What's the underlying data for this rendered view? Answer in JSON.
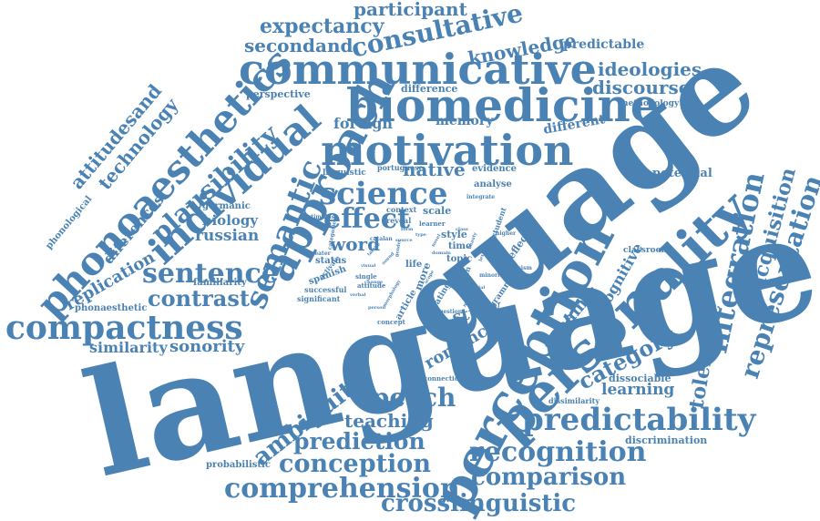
{
  "color": "#4a82b4",
  "words": [
    "language",
    "guage",
    "perception",
    "personality",
    "biomedicine",
    "motivation",
    "communicative",
    "approach",
    "phonoaesthetics",
    "individual",
    "compactness",
    "science",
    "predictability",
    "semantic",
    "integration",
    "representation",
    "speech",
    "recognition",
    "comparison",
    "comprehension",
    "crosslinguistic",
    "conception",
    "prediction",
    "sentence",
    "effect",
    "plausibility",
    "consultative",
    "ambiguity",
    "contrast",
    "category",
    "acquisition",
    "tolerance",
    "word",
    "native",
    "expectancy",
    "participant",
    "knowledge",
    "secondand",
    "ideologies",
    "discourse",
    "teaching",
    "sonority",
    "similarity",
    "technology",
    "attitudesand",
    "replication",
    "diferences",
    "russian",
    "biology",
    "romance",
    "study",
    "dynamic",
    "cognitive",
    "learning",
    "predictable",
    "potential",
    "memory",
    "foreign",
    "different",
    "difference",
    "perspective",
    "methodology",
    "phonological",
    "germanic",
    "familiarity",
    "phonaesthetic",
    "probabilistic",
    "discrimination",
    "dissociable",
    "dissimilarity",
    "linguistic",
    "portuguese",
    "evidence",
    "analyse",
    "scale",
    "context",
    "reveal",
    "style",
    "time",
    "topic",
    "life",
    "status",
    "spanish",
    "successful",
    "significant",
    "single",
    "attitude",
    "concept",
    "result",
    "rating",
    "article",
    "more",
    "stimulus",
    "categories",
    "catalan",
    "greater",
    "activate",
    "learner",
    "student",
    "reflect",
    "integrate",
    "grammar",
    "criticism",
    "question",
    "brain",
    "higher",
    "minority",
    "feature",
    "aesthetic",
    "connection",
    "classroom",
    "tactile",
    "novel",
    "sound",
    "person",
    "beauty",
    "morphology",
    "lexical",
    "verbal",
    "domain",
    "gender",
    "meaning",
    "visual",
    "source",
    "type",
    "social",
    "form",
    "class",
    "scope",
    "change"
  ]
}
